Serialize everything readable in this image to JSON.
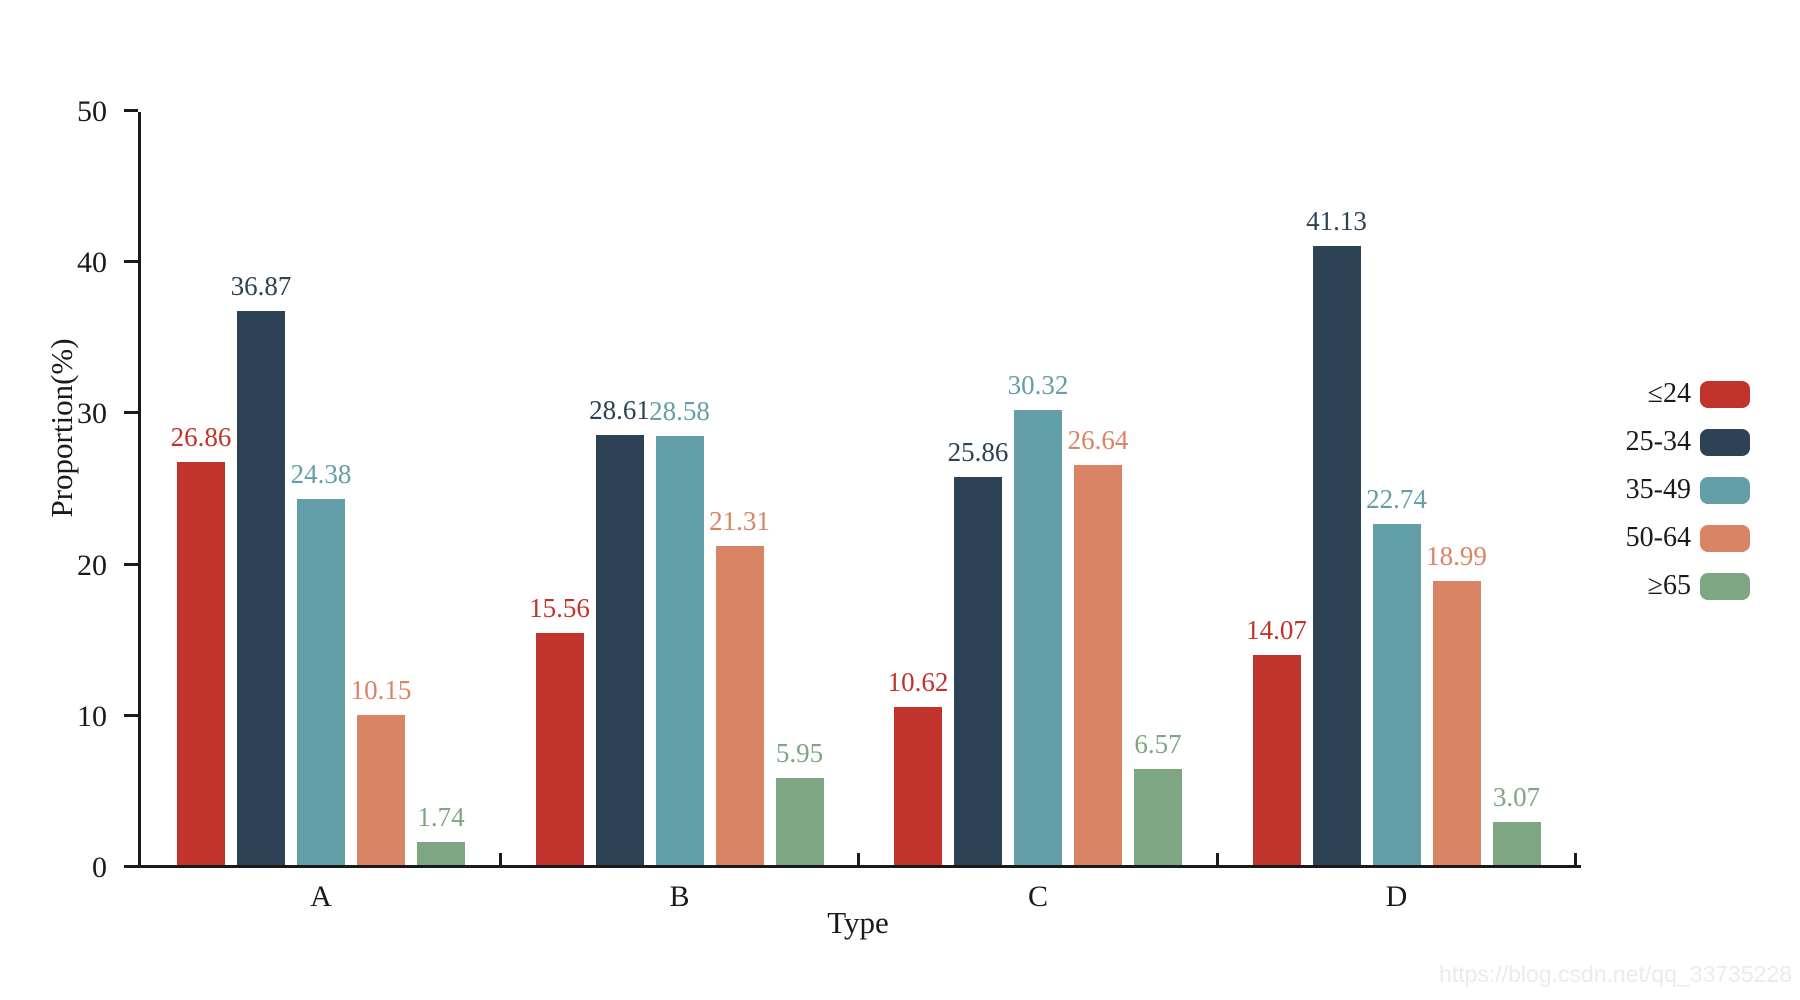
{
  "chart_data": {
    "type": "bar",
    "xlabel": "Type",
    "ylabel": "Proportion(%)",
    "ylim": [
      0,
      50
    ],
    "yticks": [
      0,
      10,
      20,
      30,
      40,
      50
    ],
    "categories": [
      "A",
      "B",
      "C",
      "D"
    ],
    "series": [
      {
        "name": "≤24",
        "color": "#c2332c",
        "values": [
          26.86,
          15.56,
          10.62,
          14.07
        ]
      },
      {
        "name": "25-34",
        "color": "#2e4255",
        "values": [
          36.87,
          28.61,
          25.86,
          41.13
        ]
      },
      {
        "name": "35-49",
        "color": "#639fa8",
        "values": [
          24.38,
          28.58,
          30.32,
          22.74
        ]
      },
      {
        "name": "50-64",
        "color": "#d98565",
        "values": [
          10.15,
          21.31,
          26.64,
          18.99
        ]
      },
      {
        "name": "≥65",
        "color": "#7ea683",
        "values": [
          1.74,
          5.95,
          6.57,
          3.07
        ]
      }
    ],
    "legend_position": "right",
    "grid": false,
    "value_labels": true
  },
  "watermark": "https://blog.csdn.net/qq_33735228"
}
